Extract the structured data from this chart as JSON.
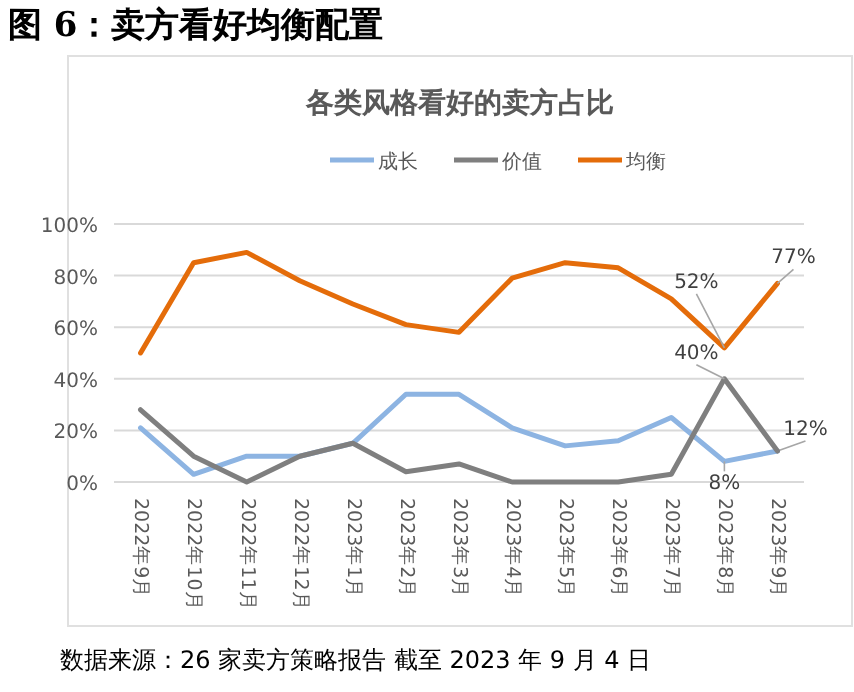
{
  "chart_data": {
    "type": "line",
    "title": "图 6：卖方看好均衡配置",
    "subtitle": "各类风格看好的卖方占比",
    "categories": [
      "2022年9月",
      "2022年10月",
      "2022年11月",
      "2022年12月",
      "2023年1月",
      "2023年2月",
      "2023年3月",
      "2023年4月",
      "2023年5月",
      "2023年6月",
      "2023年7月",
      "2023年8月",
      "2023年9月"
    ],
    "series": [
      {
        "name": "成长",
        "color": "#8db4e2",
        "values": [
          21,
          3,
          10,
          10,
          15,
          34,
          34,
          21,
          14,
          16,
          25,
          8,
          12
        ],
        "value_labels": [
          null,
          null,
          null,
          null,
          null,
          null,
          null,
          null,
          null,
          null,
          null,
          "8%",
          "12%"
        ]
      },
      {
        "name": "价值",
        "color": "#7f7f7f",
        "values": [
          28,
          10,
          0,
          10,
          15,
          4,
          7,
          0,
          0,
          0,
          3,
          40,
          12
        ],
        "value_labels": [
          null,
          null,
          null,
          null,
          null,
          null,
          null,
          null,
          null,
          null,
          null,
          "40%",
          null
        ]
      },
      {
        "name": "均衡",
        "color": "#e46c0a",
        "values": [
          50,
          85,
          89,
          78,
          69,
          61,
          58,
          79,
          85,
          83,
          71,
          52,
          77
        ],
        "value_labels": [
          null,
          null,
          null,
          null,
          null,
          null,
          null,
          null,
          null,
          null,
          null,
          "52%",
          "77%"
        ]
      }
    ],
    "ylim": [
      0,
      100
    ],
    "yticks": [
      {
        "value": 0,
        "label": "0%"
      },
      {
        "value": 20,
        "label": "20%"
      },
      {
        "value": 40,
        "label": "40%"
      },
      {
        "value": 60,
        "label": "60%"
      },
      {
        "value": 80,
        "label": "80%"
      },
      {
        "value": 100,
        "label": "100%"
      }
    ],
    "grid": "y",
    "legend": "top",
    "marker": "none",
    "annotations": [
      "数据来源：26 家卖方策略报告 截至 2023 年 9 月 4 日"
    ]
  }
}
